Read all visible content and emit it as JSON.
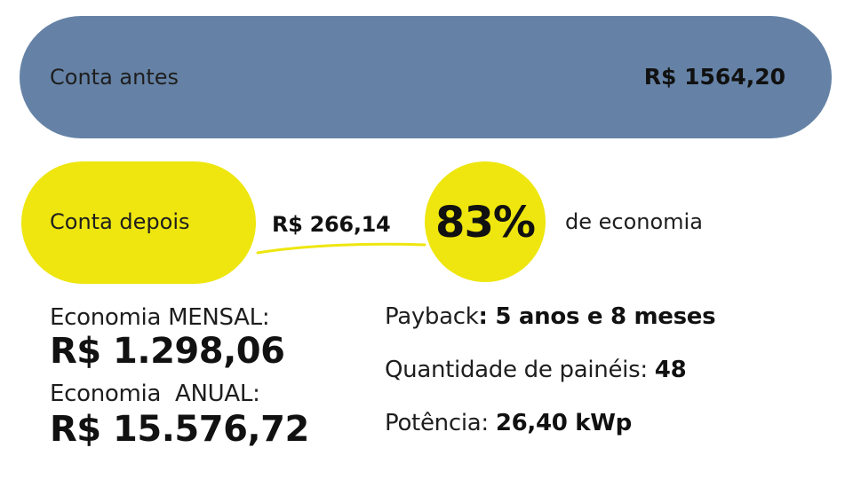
{
  "before": {
    "label": "Conta antes",
    "value": "R$ 1564,20",
    "color": "#6582a6"
  },
  "after": {
    "label": "Conta depois",
    "value": "R$ 266,14",
    "color": "#eee60e"
  },
  "savings_badge": {
    "percent": "83%",
    "caption": "de economia"
  },
  "economia": {
    "mensal_label": "Economia MENSAL:",
    "mensal_value": "R$ 1.298,06",
    "anual_label": "Economia  ANUAL:",
    "anual_value": "R$ 15.576,72"
  },
  "details": {
    "payback_label": "Payback",
    "payback_value": ": 5 anos e 8 meses",
    "paineis_label": "Quantidade de painéis: ",
    "paineis_value": "48",
    "potencia_label": "Potência: ",
    "potencia_value": "26,40 kWp"
  }
}
